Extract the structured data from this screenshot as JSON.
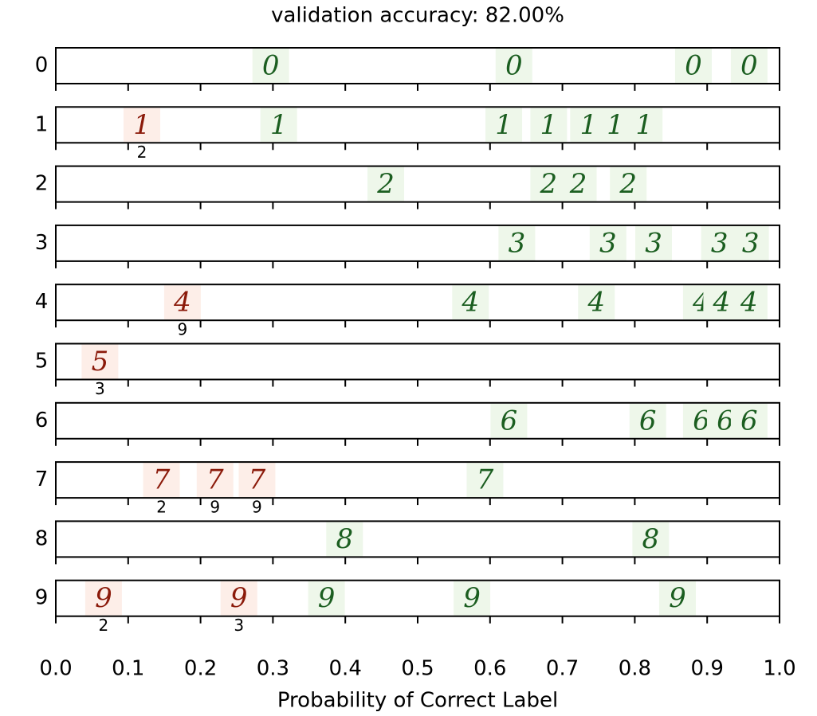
{
  "chart_data": {
    "type": "strip",
    "title": "validation accuracy: 82.00%",
    "xlabel": "Probability of Correct Label",
    "xlim": [
      0,
      1
    ],
    "xticks": [
      {
        "value": 0,
        "label": "0.0"
      },
      0.1,
      0.2,
      0.3,
      0.4,
      0.5,
      0.6,
      0.7,
      0.8,
      0.9,
      {
        "value": 1,
        "label": "1.0"
      }
    ],
    "correct_color": "#1b5e20",
    "wrong_color": "#8b1a0a",
    "rows": [
      {
        "label": "0",
        "points": [
          {
            "x": 0.297
          },
          {
            "x": 0.633
          },
          {
            "x": 0.881
          },
          {
            "x": 0.958
          }
        ]
      },
      {
        "label": "1",
        "points": [
          {
            "x": 0.119,
            "pred": "2"
          },
          {
            "x": 0.308
          },
          {
            "x": 0.619
          },
          {
            "x": 0.681
          },
          {
            "x": 0.736
          },
          {
            "x": 0.773
          },
          {
            "x": 0.813
          }
        ]
      },
      {
        "label": "2",
        "points": [
          {
            "x": 0.456
          },
          {
            "x": 0.681
          },
          {
            "x": 0.722
          },
          {
            "x": 0.791
          }
        ]
      },
      {
        "label": "3",
        "points": [
          {
            "x": 0.637
          },
          {
            "x": 0.763
          },
          {
            "x": 0.826
          },
          {
            "x": 0.917
          },
          {
            "x": 0.96
          }
        ]
      },
      {
        "label": "4",
        "points": [
          {
            "x": 0.175,
            "pred": "9"
          },
          {
            "x": 0.573
          },
          {
            "x": 0.747
          },
          {
            "x": 0.892
          },
          {
            "x": 0.92
          },
          {
            "x": 0.958
          }
        ]
      },
      {
        "label": "5",
        "points": [
          {
            "x": 0.061,
            "pred": "3"
          }
        ]
      },
      {
        "label": "6",
        "points": [
          {
            "x": 0.626
          },
          {
            "x": 0.818
          },
          {
            "x": 0.892
          },
          {
            "x": 0.925
          },
          {
            "x": 0.958
          }
        ]
      },
      {
        "label": "7",
        "points": [
          {
            "x": 0.146,
            "pred": "2"
          },
          {
            "x": 0.22,
            "pred": "9"
          },
          {
            "x": 0.278,
            "pred": "9"
          },
          {
            "x": 0.593
          }
        ]
      },
      {
        "label": "8",
        "points": [
          {
            "x": 0.399
          },
          {
            "x": 0.822
          }
        ]
      },
      {
        "label": "9",
        "points": [
          {
            "x": 0.066,
            "pred": "2"
          },
          {
            "x": 0.253,
            "pred": "3"
          },
          {
            "x": 0.374
          },
          {
            "x": 0.575
          },
          {
            "x": 0.859
          }
        ]
      }
    ]
  }
}
